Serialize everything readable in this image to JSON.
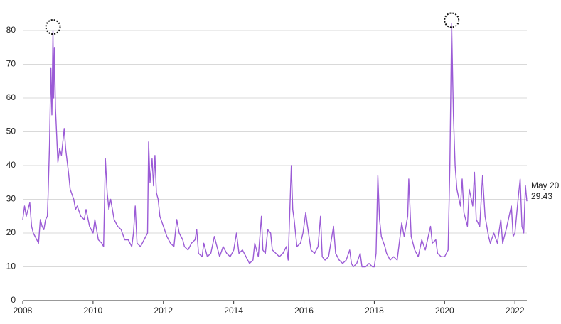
{
  "chart_data": {
    "type": "line",
    "annotation": "May 20",
    "color": "#9b5bd6",
    "grid": true,
    "xlim": [
      2008,
      2022.34
    ],
    "ylim": [
      0,
      80
    ],
    "xticks": [
      2008,
      2010,
      2012,
      2014,
      2016,
      2018,
      2020,
      2022
    ],
    "yticks": [
      0,
      10,
      20,
      30,
      40,
      50,
      60,
      70,
      80
    ],
    "x": [
      2008.0,
      2008.05,
      2008.1,
      2008.2,
      2008.25,
      2008.3,
      2008.4,
      2008.45,
      2008.5,
      2008.55,
      2008.6,
      2008.65,
      2008.7,
      2008.72,
      2008.76,
      2008.8,
      2008.83,
      2008.86,
      2008.88,
      2008.9,
      2008.93,
      2008.96,
      2009.0,
      2009.05,
      2009.1,
      2009.18,
      2009.22,
      2009.3,
      2009.35,
      2009.45,
      2009.5,
      2009.55,
      2009.65,
      2009.75,
      2009.8,
      2009.9,
      2010.0,
      2010.05,
      2010.15,
      2010.25,
      2010.3,
      2010.35,
      2010.4,
      2010.45,
      2010.5,
      2010.6,
      2010.7,
      2010.8,
      2010.9,
      2011.0,
      2011.1,
      2011.15,
      2011.2,
      2011.25,
      2011.35,
      2011.45,
      2011.55,
      2011.58,
      2011.62,
      2011.68,
      2011.72,
      2011.76,
      2011.8,
      2011.85,
      2011.9,
      2012.0,
      2012.1,
      2012.2,
      2012.3,
      2012.38,
      2012.45,
      2012.55,
      2012.6,
      2012.7,
      2012.8,
      2012.9,
      2012.95,
      2013.0,
      2013.1,
      2013.15,
      2013.25,
      2013.35,
      2013.45,
      2013.5,
      2013.6,
      2013.7,
      2013.8,
      2013.9,
      2014.0,
      2014.08,
      2014.15,
      2014.25,
      2014.35,
      2014.45,
      2014.55,
      2014.6,
      2014.7,
      2014.79,
      2014.83,
      2014.9,
      2014.97,
      2015.05,
      2015.1,
      2015.2,
      2015.3,
      2015.4,
      2015.5,
      2015.55,
      2015.64,
      2015.68,
      2015.72,
      2015.8,
      2015.9,
      2015.97,
      2016.05,
      2016.1,
      2016.2,
      2016.3,
      2016.4,
      2016.47,
      2016.52,
      2016.6,
      2016.7,
      2016.84,
      2016.9,
      2017.0,
      2017.1,
      2017.2,
      2017.3,
      2017.35,
      2017.4,
      2017.5,
      2017.6,
      2017.65,
      2017.75,
      2017.85,
      2017.95,
      2018.0,
      2018.05,
      2018.1,
      2018.15,
      2018.2,
      2018.3,
      2018.35,
      2018.45,
      2018.55,
      2018.65,
      2018.78,
      2018.85,
      2018.95,
      2018.98,
      2019.05,
      2019.15,
      2019.25,
      2019.35,
      2019.45,
      2019.6,
      2019.65,
      2019.75,
      2019.8,
      2019.9,
      2020.0,
      2020.1,
      2020.15,
      2020.2,
      2020.25,
      2020.3,
      2020.35,
      2020.45,
      2020.5,
      2020.55,
      2020.65,
      2020.7,
      2020.8,
      2020.85,
      2020.9,
      2021.0,
      2021.08,
      2021.15,
      2021.25,
      2021.3,
      2021.4,
      2021.5,
      2021.6,
      2021.65,
      2021.75,
      2021.9,
      2021.95,
      2022.0,
      2022.1,
      2022.15,
      2022.2,
      2022.25,
      2022.3,
      2022.34
    ],
    "values": [
      24,
      28,
      25,
      29,
      22,
      20,
      18,
      17,
      24,
      22,
      21,
      24,
      25,
      31,
      46,
      69,
      55,
      80,
      60,
      75,
      57,
      50,
      41,
      45,
      43,
      51,
      45,
      38,
      33,
      30,
      27,
      28,
      25,
      24,
      27,
      22,
      20,
      24,
      18,
      17,
      16,
      42,
      32,
      27,
      30,
      24,
      22,
      21,
      18,
      18,
      16,
      20,
      28,
      17,
      16,
      18,
      20,
      47,
      35,
      42,
      34,
      43,
      32,
      30,
      25,
      22,
      19,
      17,
      16,
      24,
      20,
      18,
      16,
      15,
      17,
      18,
      21,
      14,
      13,
      17,
      13,
      14,
      19,
      17,
      13,
      16,
      14,
      13,
      15,
      20,
      14,
      15,
      13,
      11,
      12,
      17,
      13,
      25,
      15,
      14,
      21,
      20,
      15,
      14,
      13,
      14,
      16,
      12,
      40,
      27,
      24,
      16,
      17,
      20,
      26,
      22,
      15,
      14,
      16,
      25,
      13,
      12,
      13,
      22,
      14,
      12,
      11,
      12,
      15,
      11,
      10,
      11,
      14,
      10,
      10,
      11,
      10,
      10,
      14,
      37,
      24,
      19,
      16,
      14,
      12,
      13,
      12,
      23,
      19,
      25,
      36,
      19,
      15,
      13,
      18,
      15,
      22,
      17,
      18,
      14,
      13,
      13,
      15,
      40,
      82,
      55,
      40,
      33,
      28,
      36,
      26,
      22,
      33,
      28,
      38,
      24,
      22,
      37,
      25,
      19,
      17,
      20,
      17,
      24,
      17,
      21,
      28,
      19,
      20,
      31,
      36,
      22,
      20,
      34,
      29.43
    ]
  }
}
